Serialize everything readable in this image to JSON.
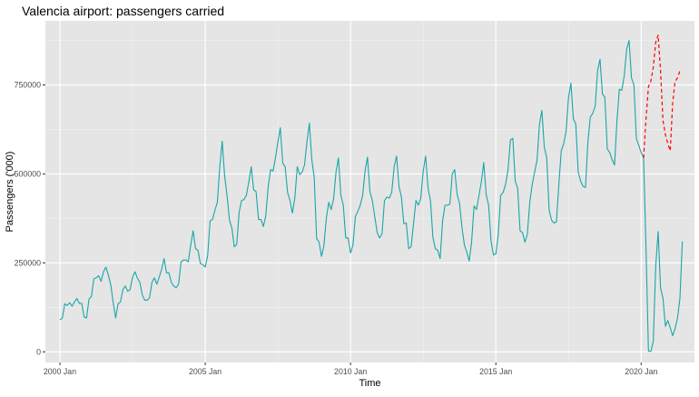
{
  "chart_data": {
    "type": "line",
    "title": "Valencia airport: passengers carried",
    "xlabel": "Time",
    "ylabel": "Passengers ('000)",
    "x_range": [
      "1999-07",
      "2021-11"
    ],
    "y_range": [
      -30000,
      930000
    ],
    "x_ticks": [
      {
        "label": "2000 Jan",
        "value": "2000-01"
      },
      {
        "label": "2005 Jan",
        "value": "2005-01"
      },
      {
        "label": "2010 Jan",
        "value": "2010-01"
      },
      {
        "label": "2015 Jan",
        "value": "2015-01"
      },
      {
        "label": "2020 Jan",
        "value": "2020-01"
      }
    ],
    "y_ticks": [
      {
        "label": "0",
        "value": 0
      },
      {
        "label": "250000",
        "value": 250000
      },
      {
        "label": "500000",
        "value": 500000
      },
      {
        "label": "750000",
        "value": 750000
      }
    ],
    "grid": true,
    "legend": "none",
    "background": "#e5e5e5",
    "series": [
      {
        "color": "#1aa5a8",
        "style": "solid",
        "start": "2000-01",
        "values": [
          90000,
          95000,
          135000,
          130000,
          138000,
          128000,
          140000,
          150000,
          136000,
          136000,
          98000,
          95000,
          148000,
          155000,
          205000,
          208000,
          214000,
          198000,
          225000,
          238000,
          216000,
          188000,
          138000,
          95000,
          135000,
          140000,
          175000,
          185000,
          170000,
          175000,
          210000,
          225000,
          207000,
          195000,
          160000,
          145000,
          145000,
          152000,
          195000,
          208000,
          190000,
          210000,
          232000,
          262000,
          222000,
          222000,
          195000,
          185000,
          180000,
          190000,
          252000,
          258000,
          258000,
          253000,
          300000,
          340000,
          290000,
          285000,
          248000,
          245000,
          238000,
          270000,
          368000,
          372000,
          398000,
          420000,
          520000,
          592000,
          495000,
          440000,
          370000,
          348000,
          295000,
          302000,
          392000,
          425000,
          428000,
          440000,
          478000,
          520000,
          455000,
          450000,
          372000,
          372000,
          352000,
          382000,
          465000,
          512000,
          508000,
          545000,
          590000,
          630000,
          530000,
          520000,
          448000,
          425000,
          390000,
          432000,
          520000,
          498000,
          505000,
          525000,
          590000,
          643000,
          540000,
          490000,
          318000,
          308000,
          268000,
          298000,
          375000,
          420000,
          400000,
          430000,
          505000,
          545000,
          440000,
          412000,
          320000,
          320000,
          278000,
          300000,
          380000,
          395000,
          412000,
          440000,
          508000,
          547000,
          450000,
          425000,
          380000,
          335000,
          320000,
          332000,
          425000,
          435000,
          432000,
          448000,
          520000,
          550000,
          465000,
          435000,
          360000,
          362000,
          290000,
          295000,
          360000,
          425000,
          412000,
          432000,
          508000,
          550000,
          460000,
          425000,
          322000,
          290000,
          285000,
          262000,
          368000,
          412000,
          412000,
          415000,
          500000,
          512000,
          442000,
          418000,
          350000,
          300000,
          280000,
          255000,
          310000,
          410000,
          400000,
          438000,
          478000,
          532000,
          442000,
          412000,
          312000,
          272000,
          275000,
          330000,
          440000,
          448000,
          470000,
          510000,
          595000,
          600000,
          480000,
          460000,
          340000,
          335000,
          308000,
          330000,
          420000,
          470000,
          505000,
          538000,
          640000,
          678000,
          575000,
          545000,
          398000,
          370000,
          362000,
          365000,
          470000,
          565000,
          585000,
          620000,
          715000,
          755000,
          655000,
          640000,
          505000,
          480000,
          465000,
          462000,
          590000,
          660000,
          670000,
          690000,
          790000,
          822000,
          725000,
          715000,
          570000,
          560000,
          540000,
          525000,
          650000,
          738000,
          735000,
          775000,
          850000,
          875000,
          770000,
          750000,
          600000,
          580000,
          560000,
          545000,
          290000,
          2000,
          1000,
          30000,
          240000,
          338000,
          180000,
          150000,
          72000,
          88000,
          68000,
          45000,
          65000,
          95000,
          150000,
          310000
        ]
      },
      {
        "color": "#ff0000",
        "style": "dashed",
        "start": "2020-02",
        "values": [
          545000,
          655000,
          745000,
          760000,
          800000,
          870000,
          890000,
          790000,
          650000,
          610000,
          585000,
          565000,
          700000,
          760000,
          770000,
          790000
        ]
      }
    ]
  }
}
